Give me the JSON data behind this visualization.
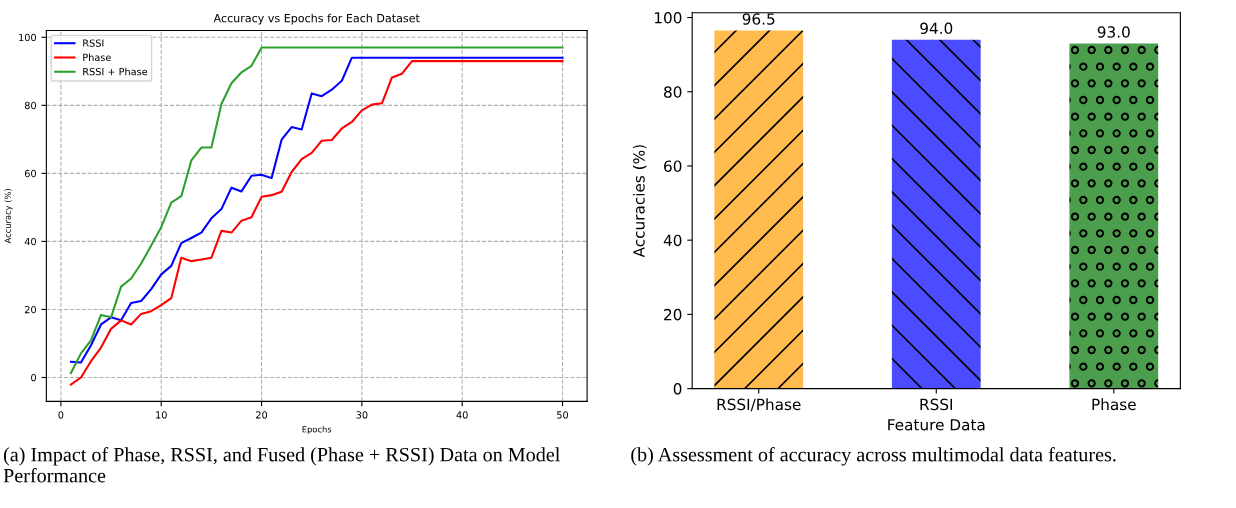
{
  "chart_data": [
    {
      "type": "line",
      "title": "Accuracy vs Epochs for Each Dataset",
      "xlabel": "Epochs",
      "ylabel": "Accuracy (%)",
      "x": [
        1,
        2,
        3,
        4,
        5,
        6,
        7,
        8,
        9,
        10,
        11,
        12,
        13,
        14,
        15,
        16,
        17,
        18,
        19,
        20,
        21,
        22,
        23,
        24,
        25,
        26,
        27,
        28,
        29,
        30,
        31,
        32,
        33,
        34,
        35,
        36,
        37,
        38,
        39,
        40,
        41,
        42,
        43,
        44,
        45,
        46,
        47,
        48,
        49,
        50
      ],
      "series": [
        {
          "name": "RSSI",
          "color": "#0000ff",
          "values": [
            4.6,
            4.4,
            9.5,
            15.6,
            17.7,
            16.8,
            21.9,
            22.5,
            26,
            30.3,
            32.8,
            39.5,
            41,
            42.6,
            46.8,
            49.5,
            55.8,
            54.7,
            59.3,
            59.6,
            58.6,
            69.9,
            73.6,
            72.9,
            83.5,
            82.7,
            84.6,
            87.2,
            94,
            94,
            94,
            94,
            94,
            94,
            94,
            94,
            94,
            94,
            94,
            94,
            94,
            94,
            94,
            94,
            94,
            94,
            94,
            94,
            94,
            94
          ]
        },
        {
          "name": "Phase",
          "color": "#ff0000",
          "values": [
            -2.1,
            0,
            4.8,
            8.8,
            14.3,
            16.8,
            15.6,
            18.7,
            19.5,
            21.3,
            23.3,
            35.2,
            34.2,
            34.7,
            35.2,
            43.1,
            42.6,
            46.1,
            47.1,
            53.1,
            53.6,
            54.6,
            60.4,
            64.2,
            66,
            69.6,
            69.8,
            73.2,
            75.1,
            78.5,
            80.2,
            80.6,
            88.2,
            89.3,
            93,
            93,
            93,
            93,
            93,
            93,
            93,
            93,
            93,
            93,
            93,
            93,
            93,
            93,
            93,
            93
          ]
        },
        {
          "name": "RSSI + Phase",
          "color": "#2ca02c",
          "values": [
            1.3,
            7.1,
            10.9,
            18.4,
            17.7,
            26.7,
            29.1,
            33.5,
            38.8,
            44.2,
            51.4,
            53.3,
            63.8,
            67.6,
            67.6,
            80.4,
            86.5,
            89.7,
            91.6,
            97,
            97,
            97,
            97,
            97,
            97,
            97,
            97,
            97,
            97,
            97,
            97,
            97,
            97,
            97,
            97,
            97,
            97,
            97,
            97,
            97,
            97,
            97,
            97,
            97,
            97,
            97,
            97,
            97,
            97,
            97
          ]
        }
      ],
      "xlim": [
        -1.45,
        52.45
      ],
      "xticks": [
        0,
        10,
        20,
        30,
        40,
        50
      ],
      "ylim": [
        -7,
        102
      ],
      "yticks": [
        0,
        20,
        40,
        60,
        80,
        100
      ],
      "grid": true,
      "legend": "top left",
      "annotations": [
        "(a) Impact of Phase, RSSI, and Fused (Phase + RSSI) Data on Model Performance"
      ]
    },
    {
      "type": "bar",
      "xlabel": "Feature Data",
      "ylabel": "Accuracies (%)",
      "categories": [
        "RSSI/Phase",
        "RSSI",
        "Phase"
      ],
      "values": [
        96.5,
        94.0,
        93.0
      ],
      "colors": [
        "#ffbb4d",
        "#4b4bff",
        "#4b9e4b"
      ],
      "value_labels": [
        "96.5",
        "94.0",
        "93.0"
      ],
      "ylim": [
        0,
        101.3
      ],
      "yticks": [
        0,
        20,
        40,
        60,
        80,
        100
      ],
      "grid": false,
      "legend": false,
      "annotations": [
        "(b) Assessment of accuracy across multimodal data features."
      ]
    }
  ]
}
